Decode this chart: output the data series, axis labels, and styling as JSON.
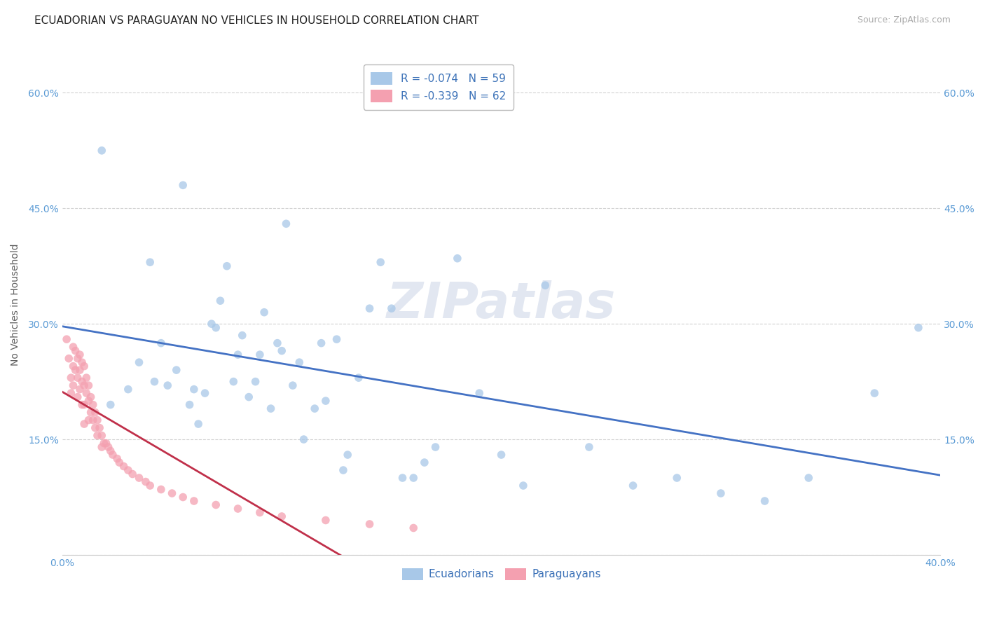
{
  "title": "ECUADORIAN VS PARAGUAYAN NO VEHICLES IN HOUSEHOLD CORRELATION CHART",
  "source": "Source: ZipAtlas.com",
  "ylabel_label": "No Vehicles in Household",
  "x_min": 0.0,
  "x_max": 0.4,
  "y_min": 0.0,
  "y_max": 0.65,
  "x_ticks": [
    0.0,
    0.1,
    0.2,
    0.3,
    0.4
  ],
  "x_tick_labels": [
    "0.0%",
    "",
    "",
    "",
    "40.0%"
  ],
  "y_ticks": [
    0.0,
    0.15,
    0.3,
    0.45,
    0.6
  ],
  "y_tick_labels": [
    "",
    "15.0%",
    "30.0%",
    "45.0%",
    "60.0%"
  ],
  "ecuadorian_color": "#a8c8e8",
  "paraguayan_color": "#f4a0b0",
  "trend_ecuadorian_color": "#4472c4",
  "trend_paraguayan_color": "#c0304a",
  "legend_R_ecuadorian": "R = -0.074",
  "legend_N_ecuadorian": "N = 59",
  "legend_R_paraguayan": "R = -0.339",
  "legend_N_paraguayan": "N = 62",
  "watermark": "ZIPatlas",
  "ecuadorian_x": [
    0.018,
    0.022,
    0.03,
    0.035,
    0.04,
    0.042,
    0.045,
    0.048,
    0.052,
    0.055,
    0.058,
    0.06,
    0.062,
    0.065,
    0.068,
    0.07,
    0.072,
    0.075,
    0.078,
    0.08,
    0.082,
    0.085,
    0.088,
    0.09,
    0.092,
    0.095,
    0.098,
    0.1,
    0.102,
    0.105,
    0.108,
    0.11,
    0.115,
    0.118,
    0.12,
    0.125,
    0.128,
    0.13,
    0.135,
    0.14,
    0.145,
    0.15,
    0.155,
    0.16,
    0.165,
    0.17,
    0.18,
    0.19,
    0.2,
    0.21,
    0.22,
    0.24,
    0.26,
    0.28,
    0.3,
    0.32,
    0.34,
    0.37,
    0.39
  ],
  "ecuadorian_y": [
    0.525,
    0.195,
    0.215,
    0.25,
    0.38,
    0.225,
    0.275,
    0.22,
    0.24,
    0.48,
    0.195,
    0.215,
    0.17,
    0.21,
    0.3,
    0.295,
    0.33,
    0.375,
    0.225,
    0.26,
    0.285,
    0.205,
    0.225,
    0.26,
    0.315,
    0.19,
    0.275,
    0.265,
    0.43,
    0.22,
    0.25,
    0.15,
    0.19,
    0.275,
    0.2,
    0.28,
    0.11,
    0.13,
    0.23,
    0.32,
    0.38,
    0.32,
    0.1,
    0.1,
    0.12,
    0.14,
    0.385,
    0.21,
    0.13,
    0.09,
    0.35,
    0.14,
    0.09,
    0.1,
    0.08,
    0.07,
    0.1,
    0.21,
    0.295
  ],
  "paraguayan_x": [
    0.002,
    0.003,
    0.004,
    0.004,
    0.005,
    0.005,
    0.005,
    0.006,
    0.006,
    0.007,
    0.007,
    0.007,
    0.008,
    0.008,
    0.008,
    0.009,
    0.009,
    0.009,
    0.01,
    0.01,
    0.01,
    0.01,
    0.011,
    0.011,
    0.012,
    0.012,
    0.012,
    0.013,
    0.013,
    0.014,
    0.014,
    0.015,
    0.015,
    0.016,
    0.016,
    0.017,
    0.018,
    0.018,
    0.019,
    0.02,
    0.021,
    0.022,
    0.023,
    0.025,
    0.026,
    0.028,
    0.03,
    0.032,
    0.035,
    0.038,
    0.04,
    0.045,
    0.05,
    0.055,
    0.06,
    0.07,
    0.08,
    0.09,
    0.1,
    0.12,
    0.14,
    0.16
  ],
  "paraguayan_y": [
    0.28,
    0.255,
    0.23,
    0.21,
    0.27,
    0.245,
    0.22,
    0.265,
    0.24,
    0.255,
    0.23,
    0.205,
    0.26,
    0.24,
    0.215,
    0.25,
    0.225,
    0.195,
    0.245,
    0.22,
    0.195,
    0.17,
    0.23,
    0.21,
    0.22,
    0.2,
    0.175,
    0.205,
    0.185,
    0.195,
    0.175,
    0.185,
    0.165,
    0.175,
    0.155,
    0.165,
    0.155,
    0.14,
    0.145,
    0.145,
    0.14,
    0.135,
    0.13,
    0.125,
    0.12,
    0.115,
    0.11,
    0.105,
    0.1,
    0.095,
    0.09,
    0.085,
    0.08,
    0.075,
    0.07,
    0.065,
    0.06,
    0.055,
    0.05,
    0.045,
    0.04,
    0.035
  ],
  "background_color": "#ffffff",
  "grid_color": "#cccccc",
  "title_fontsize": 11,
  "tick_color": "#5b9bd5",
  "axis_label_color": "#606060"
}
